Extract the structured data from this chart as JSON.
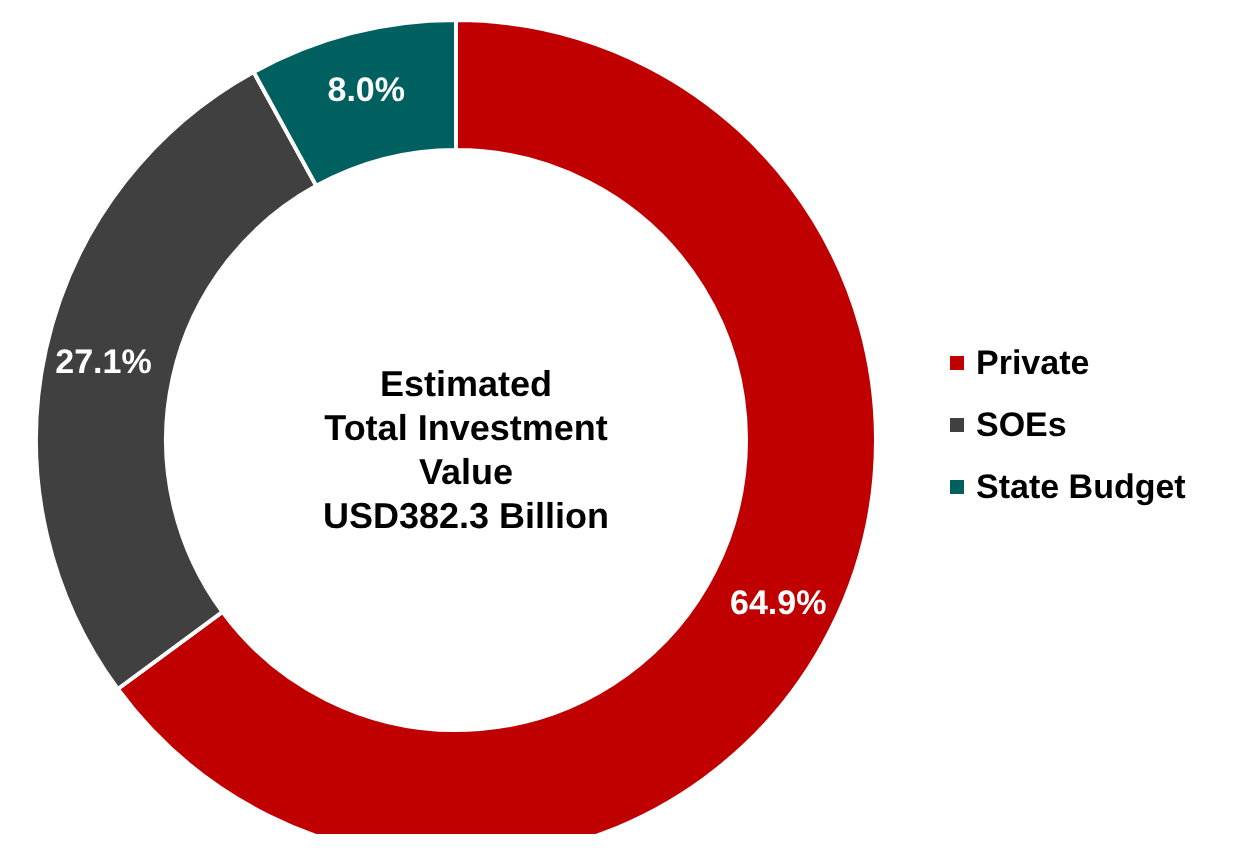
{
  "chart_data": {
    "type": "donut",
    "title": "Estimated\nTotal Investment\nValue\nUSD382.3 Billion",
    "categories": [
      "Private",
      "SOEs",
      "State Budget"
    ],
    "values": [
      64.9,
      27.1,
      8.0
    ],
    "colors": [
      "#c00000",
      "#404040",
      "#006060"
    ],
    "value_labels": [
      "64.9%",
      "27.1%",
      "8.0%"
    ],
    "legend": "right"
  }
}
